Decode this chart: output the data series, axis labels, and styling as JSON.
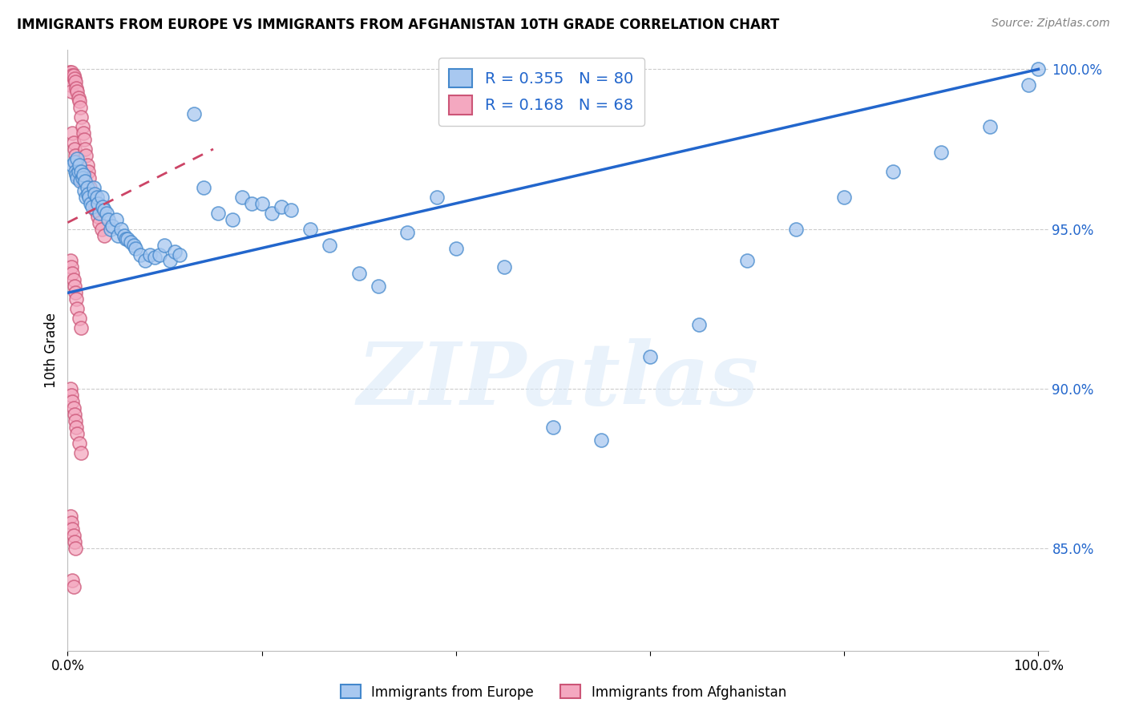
{
  "title": "IMMIGRANTS FROM EUROPE VS IMMIGRANTS FROM AFGHANISTAN 10TH GRADE CORRELATION CHART",
  "source": "Source: ZipAtlas.com",
  "ylabel": "10th Grade",
  "legend_europe": "Immigrants from Europe",
  "legend_afghanistan": "Immigrants from Afghanistan",
  "R_europe": 0.355,
  "N_europe": 80,
  "R_afghanistan": 0.168,
  "N_afghanistan": 68,
  "color_europe": "#A8C8F0",
  "color_afghanistan": "#F4A8C0",
  "edge_europe": "#4488CC",
  "edge_afghanistan": "#CC5577",
  "trendline_europe_color": "#2266CC",
  "trendline_afghanistan_color": "#CC4466",
  "watermark_color": "#D8E8F8",
  "xlim": [
    0.0,
    1.01
  ],
  "ylim": [
    0.818,
    1.006
  ],
  "yticks": [
    0.85,
    0.9,
    0.95,
    1.0
  ],
  "ytick_labels": [
    "85.0%",
    "90.0%",
    "95.0%",
    "100.0%"
  ],
  "europe_x": [
    0.005,
    0.007,
    0.008,
    0.009,
    0.01,
    0.01,
    0.011,
    0.012,
    0.013,
    0.014,
    0.015,
    0.016,
    0.017,
    0.018,
    0.019,
    0.02,
    0.021,
    0.022,
    0.024,
    0.025,
    0.027,
    0.028,
    0.03,
    0.031,
    0.033,
    0.035,
    0.036,
    0.038,
    0.04,
    0.042,
    0.044,
    0.046,
    0.05,
    0.052,
    0.055,
    0.058,
    0.06,
    0.062,
    0.065,
    0.068,
    0.07,
    0.075,
    0.08,
    0.085,
    0.09,
    0.095,
    0.1,
    0.105,
    0.11,
    0.115,
    0.13,
    0.14,
    0.155,
    0.17,
    0.18,
    0.19,
    0.2,
    0.21,
    0.22,
    0.23,
    0.25,
    0.27,
    0.3,
    0.32,
    0.35,
    0.38,
    0.4,
    0.45,
    0.5,
    0.55,
    0.6,
    0.65,
    0.7,
    0.75,
    0.8,
    0.85,
    0.9,
    0.95,
    0.99,
    1.0
  ],
  "europe_y": [
    0.97,
    0.971,
    0.968,
    0.967,
    0.972,
    0.966,
    0.968,
    0.97,
    0.965,
    0.968,
    0.966,
    0.967,
    0.962,
    0.965,
    0.96,
    0.963,
    0.961,
    0.96,
    0.958,
    0.957,
    0.963,
    0.961,
    0.96,
    0.958,
    0.955,
    0.96,
    0.957,
    0.956,
    0.955,
    0.953,
    0.95,
    0.951,
    0.953,
    0.948,
    0.95,
    0.948,
    0.947,
    0.947,
    0.946,
    0.945,
    0.944,
    0.942,
    0.94,
    0.942,
    0.941,
    0.942,
    0.945,
    0.94,
    0.943,
    0.942,
    0.986,
    0.963,
    0.955,
    0.953,
    0.96,
    0.958,
    0.958,
    0.955,
    0.957,
    0.956,
    0.95,
    0.945,
    0.936,
    0.932,
    0.949,
    0.96,
    0.944,
    0.938,
    0.888,
    0.884,
    0.91,
    0.92,
    0.94,
    0.95,
    0.96,
    0.968,
    0.974,
    0.982,
    0.995,
    1.0
  ],
  "afghanistan_x": [
    0.002,
    0.003,
    0.003,
    0.004,
    0.004,
    0.005,
    0.005,
    0.006,
    0.006,
    0.007,
    0.007,
    0.008,
    0.008,
    0.009,
    0.009,
    0.01,
    0.01,
    0.011,
    0.011,
    0.012,
    0.012,
    0.013,
    0.014,
    0.015,
    0.015,
    0.016,
    0.017,
    0.018,
    0.019,
    0.02,
    0.021,
    0.022,
    0.023,
    0.025,
    0.027,
    0.029,
    0.031,
    0.033,
    0.035,
    0.038,
    0.003,
    0.004,
    0.005,
    0.006,
    0.007,
    0.008,
    0.009,
    0.01,
    0.012,
    0.014,
    0.003,
    0.004,
    0.005,
    0.006,
    0.007,
    0.008,
    0.009,
    0.01,
    0.012,
    0.014,
    0.003,
    0.004,
    0.005,
    0.006,
    0.007,
    0.008,
    0.005,
    0.006
  ],
  "afghanistan_y": [
    0.999,
    0.998,
    0.995,
    0.999,
    0.993,
    0.998,
    0.98,
    0.998,
    0.977,
    0.997,
    0.975,
    0.996,
    0.973,
    0.994,
    0.971,
    0.993,
    0.969,
    0.991,
    0.968,
    0.99,
    0.966,
    0.988,
    0.985,
    0.982,
    0.965,
    0.98,
    0.978,
    0.975,
    0.973,
    0.97,
    0.968,
    0.966,
    0.963,
    0.96,
    0.958,
    0.956,
    0.954,
    0.952,
    0.95,
    0.948,
    0.94,
    0.938,
    0.936,
    0.934,
    0.932,
    0.93,
    0.928,
    0.925,
    0.922,
    0.919,
    0.9,
    0.898,
    0.896,
    0.894,
    0.892,
    0.89,
    0.888,
    0.886,
    0.883,
    0.88,
    0.86,
    0.858,
    0.856,
    0.854,
    0.852,
    0.85,
    0.84,
    0.838
  ],
  "trendline_eu_x0": 0.0,
  "trendline_eu_y0": 0.93,
  "trendline_eu_x1": 1.0,
  "trendline_eu_y1": 1.0,
  "trendline_af_x0": 0.0,
  "trendline_af_y0": 0.952,
  "trendline_af_x1": 0.15,
  "trendline_af_y1": 0.975
}
